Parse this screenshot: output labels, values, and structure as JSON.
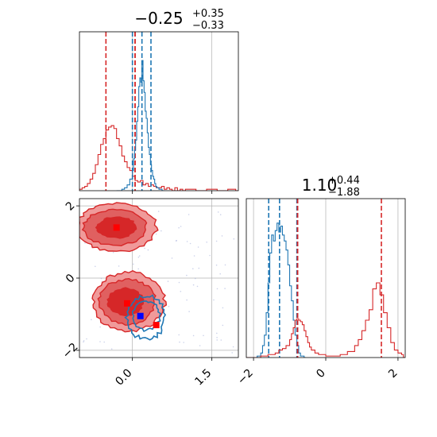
{
  "colors": {
    "red": "#d62728",
    "red_light": "#f09a9a",
    "red_mid": "#e06060",
    "blue": "#1f77b4",
    "grid": "#b0b0b0"
  },
  "chart_data": [
    {
      "type": "histogram",
      "panel": "top-left",
      "title": {
        "base": "−0.25",
        "sup": "+0.35",
        "sub": "−0.33"
      },
      "xlim": [
        -1.0,
        2.0
      ],
      "x_ticks": [
        0.0,
        1.5
      ],
      "series": [
        {
          "color": "red",
          "bins": [
            [
              -1.0,
              0.01
            ],
            [
              -0.95,
              0.02
            ],
            [
              -0.9,
              0.03
            ],
            [
              -0.85,
              0.05
            ],
            [
              -0.8,
              0.08
            ],
            [
              -0.75,
              0.12
            ],
            [
              -0.7,
              0.18
            ],
            [
              -0.65,
              0.25
            ],
            [
              -0.6,
              0.32
            ],
            [
              -0.55,
              0.36
            ],
            [
              -0.5,
              0.42
            ],
            [
              -0.45,
              0.44
            ],
            [
              -0.4,
              0.45
            ],
            [
              -0.35,
              0.43
            ],
            [
              -0.3,
              0.36
            ],
            [
              -0.25,
              0.31
            ],
            [
              -0.2,
              0.24
            ],
            [
              -0.15,
              0.2
            ],
            [
              -0.1,
              0.16
            ],
            [
              -0.05,
              0.14
            ],
            [
              0.0,
              0.1
            ],
            [
              0.05,
              0.07
            ],
            [
              0.1,
              0.06
            ],
            [
              0.15,
              0.07
            ],
            [
              0.2,
              0.04
            ],
            [
              0.25,
              0.05
            ],
            [
              0.3,
              0.03
            ],
            [
              0.35,
              0.04
            ],
            [
              0.4,
              0.03
            ],
            [
              0.45,
              0.02
            ],
            [
              0.5,
              0.02
            ],
            [
              0.55,
              0.03
            ],
            [
              0.6,
              0.01
            ],
            [
              0.65,
              0.02
            ],
            [
              0.7,
              0.01
            ],
            [
              0.75,
              0.0
            ],
            [
              0.8,
              0.02
            ],
            [
              0.85,
              0.0
            ],
            [
              0.9,
              0.01
            ],
            [
              0.95,
              0.0
            ],
            [
              1.0,
              0.01
            ],
            [
              1.2,
              0.0
            ],
            [
              1.4,
              0.01
            ],
            [
              1.6,
              0.0
            ],
            [
              1.8,
              0.01
            ],
            [
              1.95,
              0.0
            ]
          ],
          "median": 0.05,
          "q_lo": -0.5,
          "q_hi": 0.05
        },
        {
          "color": "blue",
          "bins": [
            [
              -0.3,
              0.0
            ],
            [
              -0.2,
              0.01
            ],
            [
              -0.15,
              0.02
            ],
            [
              -0.1,
              0.04
            ],
            [
              -0.05,
              0.08
            ],
            [
              0.0,
              0.14
            ],
            [
              0.02,
              0.22
            ],
            [
              0.04,
              0.28
            ],
            [
              0.06,
              0.35
            ],
            [
              0.08,
              0.48
            ],
            [
              0.1,
              0.58
            ],
            [
              0.12,
              0.72
            ],
            [
              0.14,
              0.78
            ],
            [
              0.16,
              0.75
            ],
            [
              0.18,
              0.9
            ],
            [
              0.2,
              0.76
            ],
            [
              0.22,
              0.68
            ],
            [
              0.24,
              0.55
            ],
            [
              0.26,
              0.5
            ],
            [
              0.28,
              0.4
            ],
            [
              0.3,
              0.3
            ],
            [
              0.32,
              0.25
            ],
            [
              0.34,
              0.18
            ],
            [
              0.36,
              0.14
            ],
            [
              0.38,
              0.1
            ],
            [
              0.4,
              0.08
            ],
            [
              0.42,
              0.05
            ],
            [
              0.44,
              0.03
            ],
            [
              0.46,
              0.02
            ],
            [
              0.5,
              0.01
            ],
            [
              0.56,
              0.0
            ]
          ],
          "median": 0.18,
          "q_lo": 0.0,
          "q_hi": 0.35
        }
      ]
    },
    {
      "type": "contour",
      "panel": "bottom-left",
      "xlim": [
        -1.0,
        2.0
      ],
      "ylim": [
        -2.2,
        2.2
      ],
      "x_ticks": [
        "0.0",
        "1.5"
      ],
      "y_ticks": [
        "−2",
        "0",
        "2"
      ],
      "red_modes": [
        {
          "x": -0.3,
          "y": 1.4
        },
        {
          "x": -0.1,
          "y": -0.7
        }
      ],
      "markers": [
        {
          "color": "red",
          "x": -0.3,
          "y": 1.4
        },
        {
          "color": "red",
          "x": -0.1,
          "y": -0.7
        },
        {
          "color": "red",
          "x": 0.45,
          "y": -1.3
        },
        {
          "color": "blue",
          "x": 0.15,
          "y": -1.05
        }
      ],
      "blue_mode": {
        "x": 0.2,
        "y": -1.05
      }
    },
    {
      "type": "histogram",
      "panel": "bottom-right",
      "title": {
        "base": "1.10",
        "sup": "+0.44",
        "sub": "−1.88"
      },
      "xlim": [
        -2.2,
        2.2
      ],
      "x_ticks": [
        "−2",
        "0",
        "2"
      ],
      "series": [
        {
          "color": "blue",
          "bins": [
            [
              -2.2,
              0.0
            ],
            [
              -1.9,
              0.01
            ],
            [
              -1.8,
              0.03
            ],
            [
              -1.75,
              0.08
            ],
            [
              -1.7,
              0.15
            ],
            [
              -1.65,
              0.3
            ],
            [
              -1.6,
              0.5
            ],
            [
              -1.55,
              0.7
            ],
            [
              -1.5,
              0.82
            ],
            [
              -1.45,
              0.78
            ],
            [
              -1.4,
              0.85
            ],
            [
              -1.35,
              0.9
            ],
            [
              -1.3,
              0.84
            ],
            [
              -1.25,
              0.88
            ],
            [
              -1.2,
              0.82
            ],
            [
              -1.15,
              0.78
            ],
            [
              -1.1,
              0.72
            ],
            [
              -1.05,
              0.62
            ],
            [
              -1.0,
              0.48
            ],
            [
              -0.95,
              0.38
            ],
            [
              -0.9,
              0.25
            ],
            [
              -0.85,
              0.15
            ],
            [
              -0.8,
              0.08
            ],
            [
              -0.75,
              0.03
            ],
            [
              -0.7,
              0.01
            ],
            [
              -0.6,
              0.0
            ]
          ],
          "median": -1.28,
          "q_lo": -1.58,
          "q_hi": -0.8
        },
        {
          "color": "red",
          "bins": [
            [
              -2.2,
              0.0
            ],
            [
              -1.8,
              0.01
            ],
            [
              -1.6,
              0.02
            ],
            [
              -1.4,
              0.03
            ],
            [
              -1.3,
              0.05
            ],
            [
              -1.2,
              0.06
            ],
            [
              -1.1,
              0.08
            ],
            [
              -1.0,
              0.12
            ],
            [
              -0.95,
              0.16
            ],
            [
              -0.9,
              0.2
            ],
            [
              -0.85,
              0.25
            ],
            [
              -0.8,
              0.26
            ],
            [
              -0.75,
              0.25
            ],
            [
              -0.7,
              0.24
            ],
            [
              -0.65,
              0.22
            ],
            [
              -0.6,
              0.18
            ],
            [
              -0.55,
              0.14
            ],
            [
              -0.5,
              0.1
            ],
            [
              -0.45,
              0.07
            ],
            [
              -0.4,
              0.05
            ],
            [
              -0.3,
              0.03
            ],
            [
              -0.2,
              0.02
            ],
            [
              -0.1,
              0.02
            ],
            [
              0.0,
              0.01
            ],
            [
              0.2,
              0.01
            ],
            [
              0.4,
              0.02
            ],
            [
              0.6,
              0.04
            ],
            [
              0.8,
              0.08
            ],
            [
              0.9,
              0.12
            ],
            [
              1.0,
              0.18
            ],
            [
              1.1,
              0.25
            ],
            [
              1.2,
              0.32
            ],
            [
              1.3,
              0.46
            ],
            [
              1.4,
              0.5
            ],
            [
              1.5,
              0.42
            ],
            [
              1.6,
              0.3
            ],
            [
              1.7,
              0.2
            ],
            [
              1.8,
              0.1
            ],
            [
              1.9,
              0.05
            ],
            [
              2.0,
              0.03
            ],
            [
              2.1,
              0.02
            ],
            [
              2.15,
              0.0
            ]
          ],
          "median": -0.78,
          "q_lo": -0.78,
          "q_hi": 1.54
        }
      ]
    }
  ]
}
